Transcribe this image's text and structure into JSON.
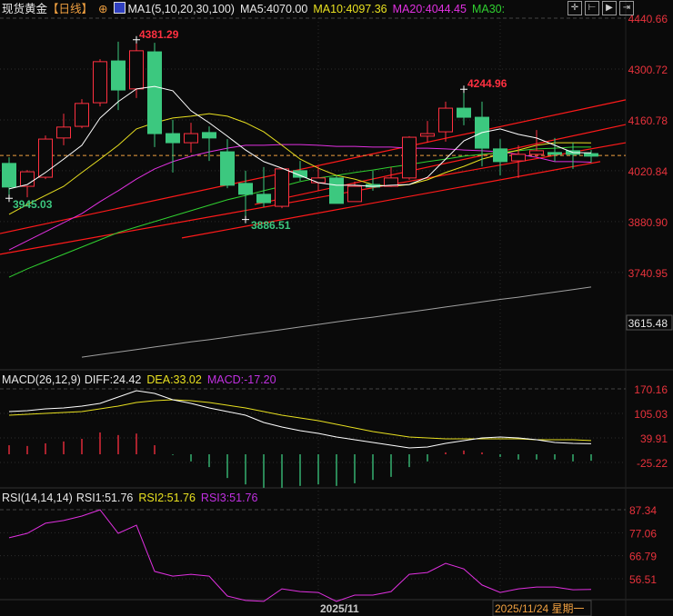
{
  "header": {
    "instrument": "现货黄金",
    "period": "【日线】",
    "indicator": "MA1(5,10,20,30,100)",
    "ma5": "MA5:4070.00",
    "ma10": "MA10:4097.36",
    "ma20": "MA20:4044.45",
    "ma30": "MA30:"
  },
  "toolbar": {
    "icons": [
      "crosshair-icon",
      "zoom-in-icon",
      "zoom-out-icon",
      "move-right-icon"
    ]
  },
  "colors": {
    "up": "#ff3040",
    "down": "#3cc87f",
    "ma5": "#ffffff",
    "ma10": "#e8e020",
    "ma20": "#e030e0",
    "ma30": "#30d030",
    "ma100": "#a0a0a0",
    "axis": "#e8323c",
    "trend": "#ff1a1a",
    "crosshair": "#f0a040"
  },
  "price_axis": [
    "4440.66",
    "4300.72",
    "4160.78",
    "4020.84",
    "3880.90",
    "3740.95"
  ],
  "price_marker": "3615.48",
  "annotations": {
    "high1": "4381.29",
    "low1": "3945.03",
    "low2": "3886.51",
    "high2": "4244.96"
  },
  "chart_data": [
    {
      "type": "candlestick",
      "ylim": [
        3500,
        4440.66
      ],
      "ohlc": [
        [
          4041,
          4058,
          3945.03,
          3976
        ],
        [
          3978,
          4023,
          3948,
          4018
        ],
        [
          4003,
          4118,
          3998,
          4108
        ],
        [
          4111,
          4178,
          4091,
          4141
        ],
        [
          4143,
          4218,
          4138,
          4206
        ],
        [
          4208,
          4328,
          4198,
          4321
        ],
        [
          4323,
          4376,
          4188,
          4243
        ],
        [
          4246,
          4381.29,
          4221,
          4351
        ],
        [
          4348,
          4373,
          4086,
          4123
        ],
        [
          4123,
          4161,
          4016,
          4098
        ],
        [
          4098,
          4153,
          4071,
          4123
        ],
        [
          4126,
          4143,
          4048,
          4111
        ],
        [
          4073,
          4108,
          3973,
          3981
        ],
        [
          3986,
          4021,
          3886.51,
          3956
        ],
        [
          3956,
          4031,
          3921,
          3933
        ],
        [
          3923,
          4028,
          3918,
          4026
        ],
        [
          4021,
          4048,
          3993,
          4003
        ],
        [
          3988,
          4033,
          3966,
          4001
        ],
        [
          4001,
          4008,
          3931,
          3931
        ],
        [
          3936,
          3991,
          3936,
          3978
        ],
        [
          3983,
          4021,
          3966,
          3976
        ],
        [
          3978,
          4031,
          3978,
          4001
        ],
        [
          4001,
          4116,
          3996,
          4113
        ],
        [
          4116,
          4158,
          4098,
          4123
        ],
        [
          4128,
          4211,
          4101,
          4193
        ],
        [
          4193,
          4244.96,
          4146,
          4168
        ],
        [
          4168,
          4211,
          4033,
          4083
        ],
        [
          4081,
          4108,
          4008,
          4046
        ],
        [
          4048,
          4091,
          4001,
          4066
        ],
        [
          4066,
          4133,
          4058,
          4076
        ],
        [
          4071,
          4111,
          4046,
          4066
        ],
        [
          4076,
          4098,
          4026,
          4066
        ],
        [
          4068,
          4078,
          4043,
          4061
        ]
      ],
      "ma5": [
        3971,
        3983,
        4016,
        4053,
        4091,
        4166,
        4211,
        4246,
        4253,
        4241,
        4186,
        4153,
        4116,
        4078,
        4046,
        4028,
        4008,
        3988,
        3981,
        3981,
        3978,
        3981,
        3983,
        4003,
        4053,
        4103,
        4126,
        4136,
        4121,
        4111,
        4091,
        4071,
        4070
      ],
      "ma10": [
        3901,
        3928,
        3953,
        3978,
        4016,
        4053,
        4091,
        4136,
        4153,
        4166,
        4171,
        4178,
        4171,
        4153,
        4128,
        4091,
        4053,
        4028,
        4008,
        3998,
        3983,
        3978,
        3983,
        3996,
        4016,
        4033,
        4053,
        4066,
        4078,
        4091,
        4098,
        4098,
        4097.36
      ],
      "ma20": [
        3803,
        3828,
        3853,
        3878,
        3903,
        3936,
        3966,
        3998,
        4026,
        4046,
        4061,
        4073,
        4083,
        4091,
        4091,
        4093,
        4093,
        4091,
        4088,
        4088,
        4086,
        4086,
        4083,
        4083,
        4081,
        4078,
        4076,
        4073,
        4066,
        4058,
        4046,
        4046,
        4044.45
      ],
      "ma30": [
        3728,
        3751,
        3771,
        3791,
        3811,
        3831,
        3851,
        3866,
        3881,
        3896,
        3911,
        3926,
        3941,
        3953,
        3966,
        3978,
        3991,
        4001,
        4008,
        4016,
        4023,
        4031,
        4038,
        4046,
        4053,
        4061,
        4066,
        4071,
        4076,
        4081,
        4083,
        4086,
        4086
      ],
      "ma100_start_candle": 5,
      "ma100": [
        3508,
        3515,
        3522,
        3529,
        3536,
        3543,
        3550,
        3556,
        3563,
        3570,
        3577,
        3584,
        3591,
        3598,
        3605,
        3612,
        3618,
        3625,
        3632,
        3639,
        3646,
        3653,
        3660,
        3667,
        3673,
        3680,
        3687,
        3694,
        3701
      ],
      "trendlines": [
        {
          "from": [
            0.5,
            3848
          ],
          "to": [
            34.9,
            4216
          ]
        },
        {
          "from": [
            0.5,
            3791
          ],
          "to": [
            34.9,
            4098
          ]
        },
        {
          "from": [
            14.5,
            3928
          ],
          "to": [
            34.9,
            4148
          ]
        },
        {
          "from": [
            10.5,
            3836
          ],
          "to": [
            33.5,
            4046
          ]
        }
      ],
      "current_price": 4063
    },
    {
      "type": "macd",
      "title": "MACD(26,12,9)",
      "diff_label": "DIFF:24.42",
      "dea_label": "DEA:33.02",
      "macd_label": "MACD:-17.20",
      "axis": [
        "170.16",
        "105.03",
        "39.91",
        "-25.22"
      ],
      "ylim": [
        -72,
        190
      ],
      "diff": [
        109.9,
        112.3,
        117.1,
        119.5,
        124.3,
        131.6,
        148.5,
        165.3,
        158.1,
        141.2,
        131.6,
        119.5,
        109.9,
        100.2,
        80.9,
        68.9,
        59.2,
        52.0,
        42.3,
        35.1,
        27.9,
        20.7,
        13.4,
        15.8,
        25.4,
        32.7,
        39.9,
        42.3,
        39.9,
        35.1,
        27.9,
        25.4,
        24.42
      ],
      "dea": [
        100.2,
        102.6,
        105.0,
        107.4,
        109.9,
        117.1,
        124.3,
        134.0,
        138.8,
        141.2,
        138.8,
        134.0,
        126.7,
        119.5,
        109.9,
        100.2,
        93.0,
        85.7,
        76.1,
        66.4,
        56.8,
        49.5,
        42.3,
        39.9,
        37.5,
        37.5,
        37.5,
        37.5,
        37.5,
        35.1,
        35.1,
        35.1,
        33.02
      ],
      "hist": [
        24,
        22,
        29,
        34,
        41,
        58,
        51,
        55,
        24,
        -2,
        -19,
        -34,
        -63,
        -80,
        -89,
        -89,
        -84,
        -80,
        -84,
        -77,
        -68,
        -60,
        -34,
        -19,
        5,
        10,
        5,
        -7,
        -14,
        -14,
        -14,
        -19,
        -17.2
      ]
    },
    {
      "type": "line",
      "title": "RSI(14,14,14)",
      "rsi1_label": "RSI1:51.76",
      "rsi2_label": "RSI2:51.76",
      "rsi3_label": "RSI3:51.76",
      "axis": [
        "87.34",
        "77.06",
        "66.79",
        "56.51"
      ],
      "ylim": [
        46.4,
        87.34
      ],
      "values": [
        74.8,
        76.8,
        81.3,
        82.5,
        84.5,
        87.3,
        76.8,
        80.4,
        59.8,
        57.7,
        58.5,
        57.7,
        48.8,
        46.8,
        46.4,
        52.0,
        50.8,
        50.4,
        46.4,
        49.2,
        49.2,
        50.8,
        58.5,
        59.3,
        63.4,
        60.9,
        53.7,
        50.4,
        52.0,
        52.8,
        52.8,
        51.6,
        51.76
      ]
    }
  ],
  "time_axis": {
    "month_label": "2025/11",
    "cursor_date": "2025/11/24 星期一"
  }
}
